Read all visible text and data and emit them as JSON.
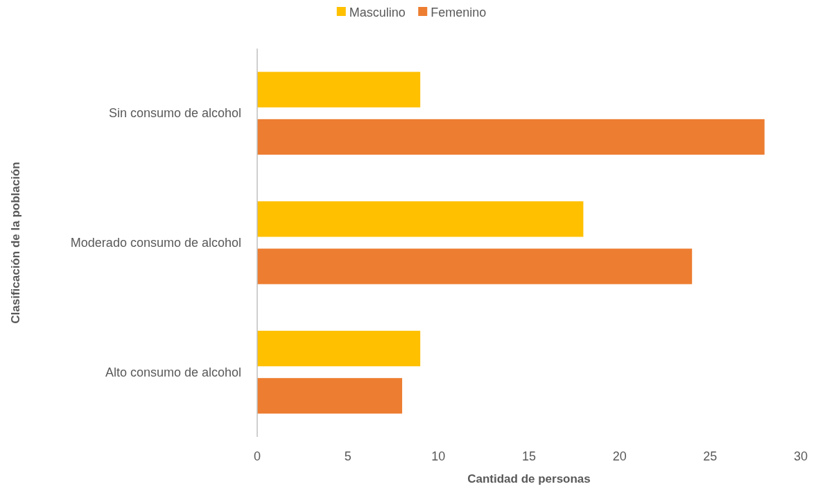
{
  "chart_data": {
    "type": "bar",
    "orientation": "horizontal",
    "categories": [
      "Sin consumo de alcohol",
      "Moderado consumo de alcohol",
      "Alto consumo de alcohol"
    ],
    "series": [
      {
        "name": "Masculino",
        "color": "#ffc000",
        "values": [
          9,
          18,
          9
        ]
      },
      {
        "name": "Femenino",
        "color": "#ed7d31",
        "values": [
          28,
          24,
          8
        ]
      }
    ],
    "xlim": [
      0,
      30
    ],
    "xticks": [
      0,
      5,
      10,
      15,
      20,
      25,
      30
    ],
    "xlabel": "Cantidad de personas",
    "ylabel": "Clasificación de la población",
    "legend": "top",
    "grid": false
  }
}
